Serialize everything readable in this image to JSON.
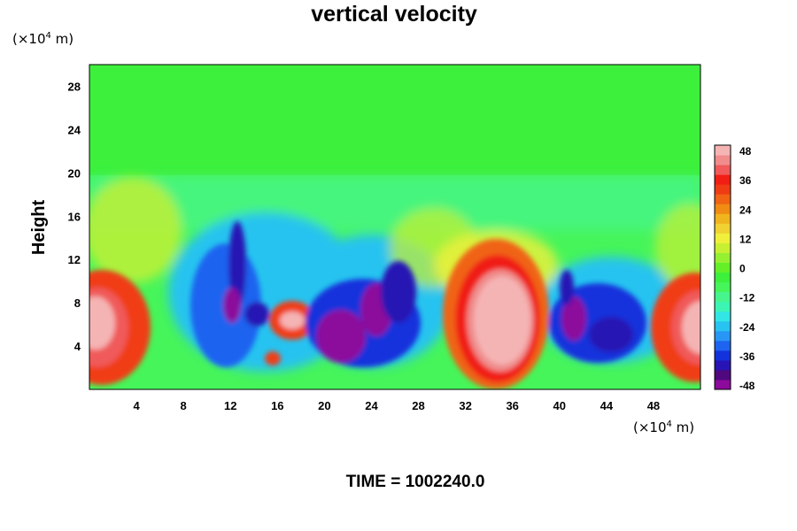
{
  "chart_data": {
    "type": "heatmap",
    "title": "vertical velocity",
    "ylabel": "Height",
    "y_unit": "(×10⁴ m)",
    "x_unit": "(×10⁴ m)",
    "x_unit_parts": {
      "pre": "(×10",
      "exp": "4",
      "post": " m)"
    },
    "y_unit_parts": {
      "pre": "(×10",
      "exp": "4",
      "post": " m)"
    },
    "xlim": [
      0,
      52
    ],
    "ylim": [
      0,
      30
    ],
    "x_ticks": [
      4,
      8,
      12,
      16,
      20,
      24,
      28,
      32,
      36,
      40,
      44,
      48
    ],
    "y_ticks": [
      4,
      8,
      12,
      16,
      20,
      24,
      28
    ],
    "colorbar": {
      "ticks": [
        48,
        36,
        24,
        12,
        0,
        -12,
        -24,
        -36,
        -48
      ],
      "range": [
        -48,
        48
      ],
      "colors": [
        "#8c0a9c",
        "#50087e",
        "#2814b4",
        "#1432dc",
        "#1e64f0",
        "#2896f5",
        "#28c3f0",
        "#32e6e6",
        "#3cf5b4",
        "#46f58c",
        "#46f55a",
        "#3cf03c",
        "#64f028",
        "#96f032",
        "#c8f032",
        "#f0f03c",
        "#f0d232",
        "#f0b41e",
        "#f08c14",
        "#f06414",
        "#f03c14",
        "#f01e14",
        "#f05a5a",
        "#f08c8c",
        "#f5b4b4"
      ]
    },
    "regions": [
      {
        "desc": "upper quiescent layer",
        "x": [
          0,
          52
        ],
        "y": [
          20,
          30
        ],
        "value": 0
      },
      {
        "desc": "updraft core",
        "x": [
          0,
          3
        ],
        "y": [
          2,
          10
        ],
        "value": 44
      },
      {
        "desc": "downdraft column",
        "x": [
          10,
          15
        ],
        "y": [
          3,
          15
        ],
        "value": -40
      },
      {
        "desc": "small updraft",
        "x": [
          16,
          19
        ],
        "y": [
          5,
          8
        ],
        "value": 40
      },
      {
        "desc": "downdraft band",
        "x": [
          20,
          27
        ],
        "y": [
          2,
          12
        ],
        "value": -44
      },
      {
        "desc": "strong updraft",
        "x": [
          31,
          37
        ],
        "y": [
          1,
          11
        ],
        "value": 48
      },
      {
        "desc": "strong downdraft",
        "x": [
          39,
          46
        ],
        "y": [
          3,
          10
        ],
        "value": -44
      },
      {
        "desc": "updraft core",
        "x": [
          48,
          52
        ],
        "y": [
          2,
          9
        ],
        "value": 44
      }
    ]
  },
  "footer": {
    "time_label": "TIME = 1002240.0"
  }
}
